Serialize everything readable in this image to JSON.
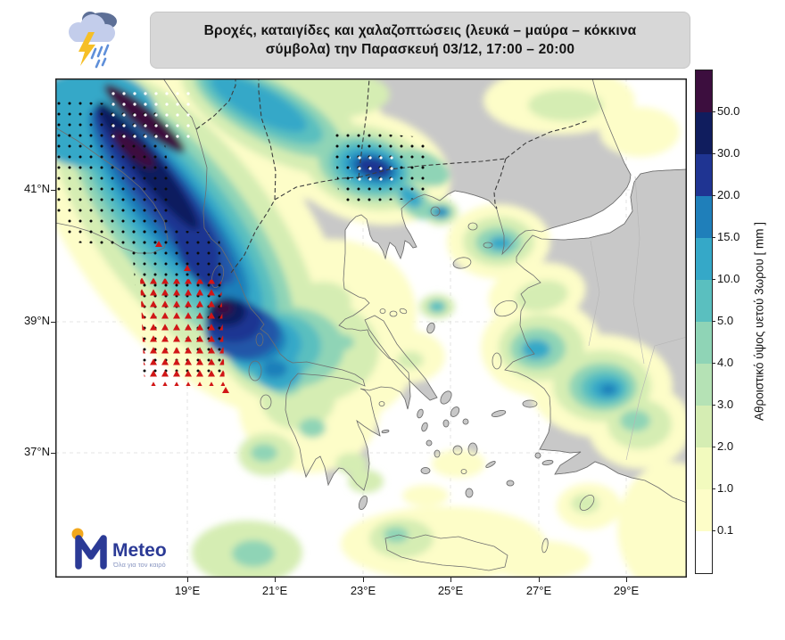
{
  "header": {
    "title_line1": "Βροχές, καταιγίδες και χαλαζοπτώσεις (λευκά – μαύρα – κόκκινα",
    "title_line2": "σύμβολα) την Παρασκευή 03/12, 17:00 – 20:00"
  },
  "axes": {
    "lat": [
      "41°N",
      "39°N",
      "37°N"
    ],
    "lon": [
      "19°E",
      "21°E",
      "23°E",
      "25°E",
      "27°E",
      "29°E"
    ]
  },
  "colorbar": {
    "label": "Αθροιστικό ύψος υετού 3ωρου [ mm ]",
    "tick_labels": [
      "50.0",
      "30.0",
      "20.0",
      "15.0",
      "10.0",
      "5.0",
      "4.0",
      "3.0",
      "2.0",
      "1.0",
      "0.1"
    ],
    "segment_colors_top_to_bottom": [
      "#3c0e3e",
      "#101d5e",
      "#1f3492",
      "#1f7fba",
      "#35a8c8",
      "#5abfbf",
      "#8fd4b6",
      "#b5e2b5",
      "#d5edb3",
      "#f2fabe",
      "#fdfdc8",
      "#ffffff"
    ]
  },
  "logo": {
    "name": "Meteo",
    "tagline": "Όλα για τον καιρό"
  },
  "map": {
    "colors": {
      "land": "#c8c8c8",
      "sea": "#ffffff"
    }
  },
  "symbols": {
    "storm_dot": "#0a0a0a",
    "core_dot": "#ffffff",
    "hail_triangle": "#d11616"
  }
}
